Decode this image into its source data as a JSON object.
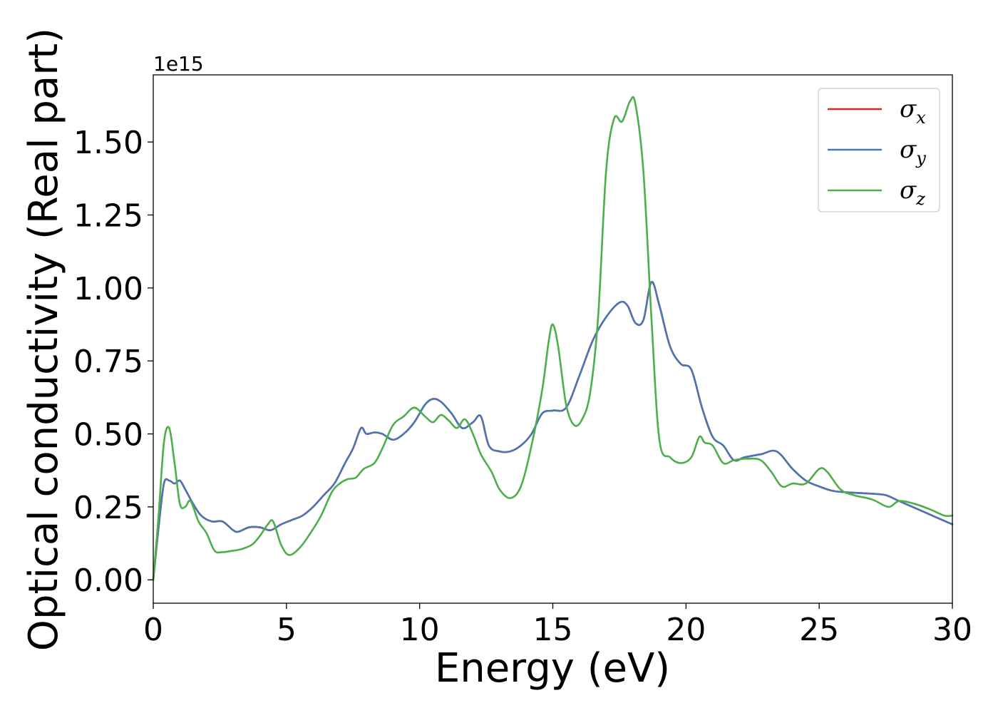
{
  "chart_data": {
    "type": "line",
    "title": "",
    "xlabel": "Energy (eV)",
    "ylabel": "Optical conductivity (Real part)",
    "y_offset_label": "1e15",
    "xlim": [
      0,
      30
    ],
    "ylim": [
      -0.08,
      1.73
    ],
    "x_ticks": [
      0,
      5,
      10,
      15,
      20,
      25,
      30
    ],
    "x_tick_labels": [
      "0",
      "5",
      "10",
      "15",
      "20",
      "25",
      "30"
    ],
    "y_ticks": [
      0,
      0.25,
      0.5,
      0.75,
      1.0,
      1.25,
      1.5
    ],
    "y_tick_labels": [
      "0.00",
      "0.25",
      "0.50",
      "0.75",
      "1.00",
      "1.25",
      "1.50"
    ],
    "grid": false,
    "legend_position": "top-right",
    "series": [
      {
        "name": "σx",
        "color": "#d62728",
        "x": [
          0,
          0.2,
          0.4,
          0.6,
          0.8,
          1.0,
          1.2,
          1.5,
          1.8,
          2.2,
          2.6,
          3.0,
          3.2,
          3.6,
          4.0,
          4.4,
          4.8,
          5.2,
          5.6,
          6.0,
          6.4,
          6.8,
          7.2,
          7.5,
          7.8,
          8.0,
          8.3,
          8.6,
          9.0,
          9.4,
          9.8,
          10.2,
          10.5,
          10.8,
          11.2,
          11.6,
          12.0,
          12.3,
          12.6,
          13.0,
          13.4,
          13.8,
          14.2,
          14.6,
          15.0,
          15.5,
          16.0,
          16.5,
          17.0,
          17.5,
          17.8,
          18.1,
          18.4,
          18.7,
          19.0,
          19.4,
          19.8,
          20.2,
          20.6,
          21.0,
          21.4,
          21.8,
          22.2,
          22.8,
          23.4,
          24.0,
          24.5,
          25.0,
          25.5,
          26.0,
          27.0,
          27.5,
          28.0,
          29.0,
          30.0
        ],
        "values": [
          0.0,
          0.18,
          0.33,
          0.34,
          0.33,
          0.34,
          0.31,
          0.26,
          0.22,
          0.2,
          0.2,
          0.17,
          0.165,
          0.18,
          0.18,
          0.17,
          0.19,
          0.205,
          0.22,
          0.25,
          0.29,
          0.33,
          0.4,
          0.45,
          0.52,
          0.5,
          0.505,
          0.5,
          0.48,
          0.5,
          0.54,
          0.6,
          0.62,
          0.61,
          0.57,
          0.52,
          0.54,
          0.56,
          0.46,
          0.44,
          0.44,
          0.46,
          0.5,
          0.57,
          0.58,
          0.59,
          0.7,
          0.82,
          0.9,
          0.95,
          0.94,
          0.88,
          0.89,
          1.02,
          0.94,
          0.8,
          0.74,
          0.72,
          0.59,
          0.49,
          0.46,
          0.41,
          0.42,
          0.43,
          0.44,
          0.38,
          0.34,
          0.32,
          0.305,
          0.3,
          0.295,
          0.29,
          0.27,
          0.23,
          0.19
        ]
      },
      {
        "name": "σy",
        "color": "#4a77b4",
        "x": [
          0,
          0.2,
          0.4,
          0.6,
          0.8,
          1.0,
          1.2,
          1.5,
          1.8,
          2.2,
          2.6,
          3.0,
          3.2,
          3.6,
          4.0,
          4.4,
          4.8,
          5.2,
          5.6,
          6.0,
          6.4,
          6.8,
          7.2,
          7.5,
          7.8,
          8.0,
          8.3,
          8.6,
          9.0,
          9.4,
          9.8,
          10.2,
          10.5,
          10.8,
          11.2,
          11.6,
          12.0,
          12.3,
          12.6,
          13.0,
          13.4,
          13.8,
          14.2,
          14.6,
          15.0,
          15.5,
          16.0,
          16.5,
          17.0,
          17.5,
          17.8,
          18.1,
          18.4,
          18.7,
          19.0,
          19.4,
          19.8,
          20.2,
          20.6,
          21.0,
          21.4,
          21.8,
          22.2,
          22.8,
          23.4,
          24.0,
          24.5,
          25.0,
          25.5,
          26.0,
          27.0,
          27.5,
          28.0,
          29.0,
          30.0
        ],
        "values": [
          0.0,
          0.18,
          0.33,
          0.34,
          0.33,
          0.34,
          0.31,
          0.26,
          0.22,
          0.2,
          0.2,
          0.17,
          0.165,
          0.18,
          0.18,
          0.17,
          0.19,
          0.205,
          0.22,
          0.25,
          0.29,
          0.33,
          0.4,
          0.45,
          0.52,
          0.5,
          0.505,
          0.5,
          0.48,
          0.5,
          0.54,
          0.6,
          0.62,
          0.61,
          0.57,
          0.52,
          0.54,
          0.56,
          0.46,
          0.44,
          0.44,
          0.46,
          0.5,
          0.57,
          0.58,
          0.59,
          0.7,
          0.82,
          0.9,
          0.95,
          0.94,
          0.88,
          0.89,
          1.02,
          0.94,
          0.8,
          0.74,
          0.72,
          0.59,
          0.49,
          0.46,
          0.41,
          0.42,
          0.43,
          0.44,
          0.38,
          0.34,
          0.32,
          0.305,
          0.3,
          0.295,
          0.29,
          0.27,
          0.23,
          0.19
        ]
      },
      {
        "name": "σz",
        "color": "#4daf4a",
        "x": [
          0,
          0.2,
          0.4,
          0.6,
          0.8,
          1.0,
          1.2,
          1.4,
          1.7,
          2.0,
          2.3,
          2.6,
          3.0,
          3.3,
          3.7,
          4.0,
          4.3,
          4.5,
          4.8,
          5.1,
          5.5,
          5.9,
          6.3,
          6.7,
          7.0,
          7.3,
          7.6,
          7.9,
          8.3,
          8.6,
          9.0,
          9.4,
          9.8,
          10.2,
          10.5,
          10.8,
          11.1,
          11.4,
          11.7,
          12.0,
          12.3,
          12.7,
          13.0,
          13.4,
          13.8,
          14.2,
          14.6,
          14.85,
          15.0,
          15.2,
          15.5,
          15.8,
          16.1,
          16.4,
          16.7,
          17.0,
          17.3,
          17.6,
          17.9,
          18.1,
          18.4,
          18.7,
          19.0,
          19.4,
          19.8,
          20.2,
          20.5,
          20.7,
          21.0,
          21.4,
          21.8,
          22.3,
          22.8,
          23.2,
          23.6,
          24.0,
          24.5,
          25.0,
          25.3,
          25.8,
          26.3,
          27.0,
          27.6,
          28.0,
          28.6,
          29.2,
          29.7,
          30.0
        ],
        "values": [
          0.0,
          0.22,
          0.47,
          0.52,
          0.4,
          0.26,
          0.25,
          0.27,
          0.2,
          0.16,
          0.1,
          0.095,
          0.1,
          0.105,
          0.12,
          0.15,
          0.19,
          0.2,
          0.12,
          0.085,
          0.11,
          0.16,
          0.22,
          0.3,
          0.33,
          0.345,
          0.35,
          0.38,
          0.4,
          0.45,
          0.53,
          0.56,
          0.59,
          0.56,
          0.54,
          0.565,
          0.545,
          0.52,
          0.55,
          0.5,
          0.43,
          0.37,
          0.31,
          0.28,
          0.32,
          0.46,
          0.65,
          0.82,
          0.875,
          0.8,
          0.6,
          0.53,
          0.55,
          0.64,
          0.9,
          1.4,
          1.58,
          1.57,
          1.64,
          1.63,
          1.4,
          0.9,
          0.48,
          0.42,
          0.4,
          0.42,
          0.49,
          0.47,
          0.46,
          0.4,
          0.41,
          0.415,
          0.41,
          0.37,
          0.32,
          0.33,
          0.33,
          0.38,
          0.37,
          0.31,
          0.29,
          0.275,
          0.25,
          0.27,
          0.26,
          0.24,
          0.22,
          0.22
        ]
      }
    ]
  }
}
